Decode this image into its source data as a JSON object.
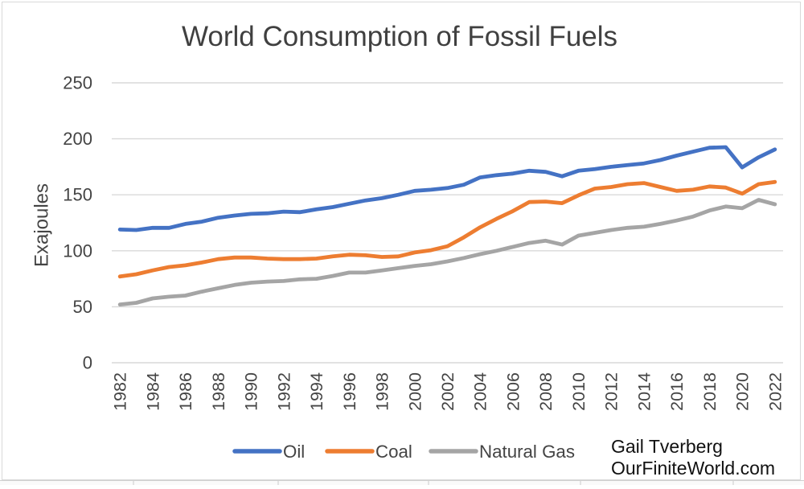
{
  "chart_data": {
    "type": "line",
    "title": "World Consumption of Fossil Fuels",
    "ylabel": "Exajoules",
    "ylim": [
      0,
      250
    ],
    "ytick_step": 50,
    "yticks": [
      0,
      50,
      100,
      150,
      200,
      250
    ],
    "grid": true,
    "legend_position": "bottom",
    "x": [
      1982,
      1983,
      1984,
      1985,
      1986,
      1987,
      1988,
      1989,
      1990,
      1991,
      1992,
      1993,
      1994,
      1995,
      1996,
      1997,
      1998,
      1999,
      2000,
      2001,
      2002,
      2003,
      2004,
      2005,
      2006,
      2007,
      2008,
      2009,
      2010,
      2011,
      2012,
      2013,
      2014,
      2015,
      2016,
      2017,
      2018,
      2019,
      2020,
      2021,
      2022
    ],
    "xtick_years": [
      1982,
      1984,
      1986,
      1988,
      1990,
      1992,
      1994,
      1996,
      1998,
      2000,
      2002,
      2004,
      2006,
      2008,
      2010,
      2012,
      2014,
      2016,
      2018,
      2020,
      2022
    ],
    "series": [
      {
        "name": "Oil",
        "color": "#4472C4",
        "values": [
          119,
          118.5,
          120.5,
          120.5,
          124,
          126,
          129.5,
          131.5,
          133,
          133.5,
          135,
          134.5,
          137,
          139,
          142,
          145,
          147,
          150,
          153.5,
          154.5,
          156,
          159,
          165.5,
          167.5,
          169,
          171.5,
          170.5,
          166.5,
          171.5,
          173,
          175,
          176.5,
          178,
          181,
          185,
          188.5,
          192,
          192.5,
          174.5,
          183.5,
          190.5
        ]
      },
      {
        "name": "Coal",
        "color": "#ED7D31",
        "values": [
          77,
          79,
          82.5,
          85.5,
          87,
          89.5,
          92.5,
          94,
          94,
          93,
          92.5,
          92.5,
          93,
          95,
          96.5,
          96,
          94.5,
          95,
          98.5,
          100.5,
          104,
          112,
          121,
          128.5,
          135.5,
          143.5,
          144,
          142.5,
          149.5,
          155.5,
          157,
          159.5,
          160.5,
          157,
          153.5,
          154.5,
          157.5,
          156.5,
          151,
          159.5,
          161.5
        ]
      },
      {
        "name": "Natural Gas",
        "color": "#A5A5A5",
        "values": [
          52,
          53.5,
          57.5,
          59,
          60,
          63.5,
          66.5,
          69.5,
          71.5,
          72.5,
          73,
          74.5,
          75,
          77.5,
          80.5,
          80.5,
          82.5,
          84.5,
          86.5,
          88,
          90.5,
          93.5,
          97,
          100,
          103.5,
          107,
          109,
          105.5,
          113.5,
          116,
          118.5,
          120.5,
          121.5,
          124,
          127,
          130.5,
          136,
          139.5,
          138,
          145.5,
          141.5
        ]
      }
    ]
  },
  "credit": {
    "line1": "Gail Tverberg",
    "line2": "OurFiniteWorld.com"
  },
  "colors": {
    "grid": "#D9D9D9",
    "axis_text": "#444444",
    "title_text": "#404040",
    "credit_text": "#111111",
    "frame_border": "#D9D9D9",
    "sheet_strip_fill": "#fafafa",
    "sheet_strip_line": "#cfcfcf"
  }
}
